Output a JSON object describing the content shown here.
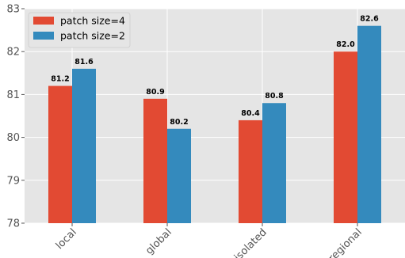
{
  "chart_data": {
    "type": "bar",
    "categories": [
      "local",
      "global",
      "isolated",
      "regional"
    ],
    "series": [
      {
        "name": "patch size=4",
        "values": [
          81.2,
          80.9,
          80.4,
          82.0
        ],
        "color": "#e24a33"
      },
      {
        "name": "patch size=2",
        "values": [
          81.6,
          80.2,
          80.8,
          82.6
        ],
        "color": "#348abd"
      }
    ],
    "data_labels": [
      [
        "81.2",
        "80.9",
        "80.4",
        "82.0"
      ],
      [
        "81.6",
        "80.2",
        "80.8",
        "82.6"
      ]
    ],
    "title": "",
    "xlabel": "",
    "ylabel": "",
    "ylim": [
      78,
      83
    ],
    "yticks": [
      "78",
      "79",
      "80",
      "81",
      "82",
      "83"
    ],
    "x_tick_rotation": "45 degrees",
    "grid": true,
    "legend_position": "top-left",
    "plot_background": "#e5e5e5",
    "grid_color": "#ffffff"
  }
}
